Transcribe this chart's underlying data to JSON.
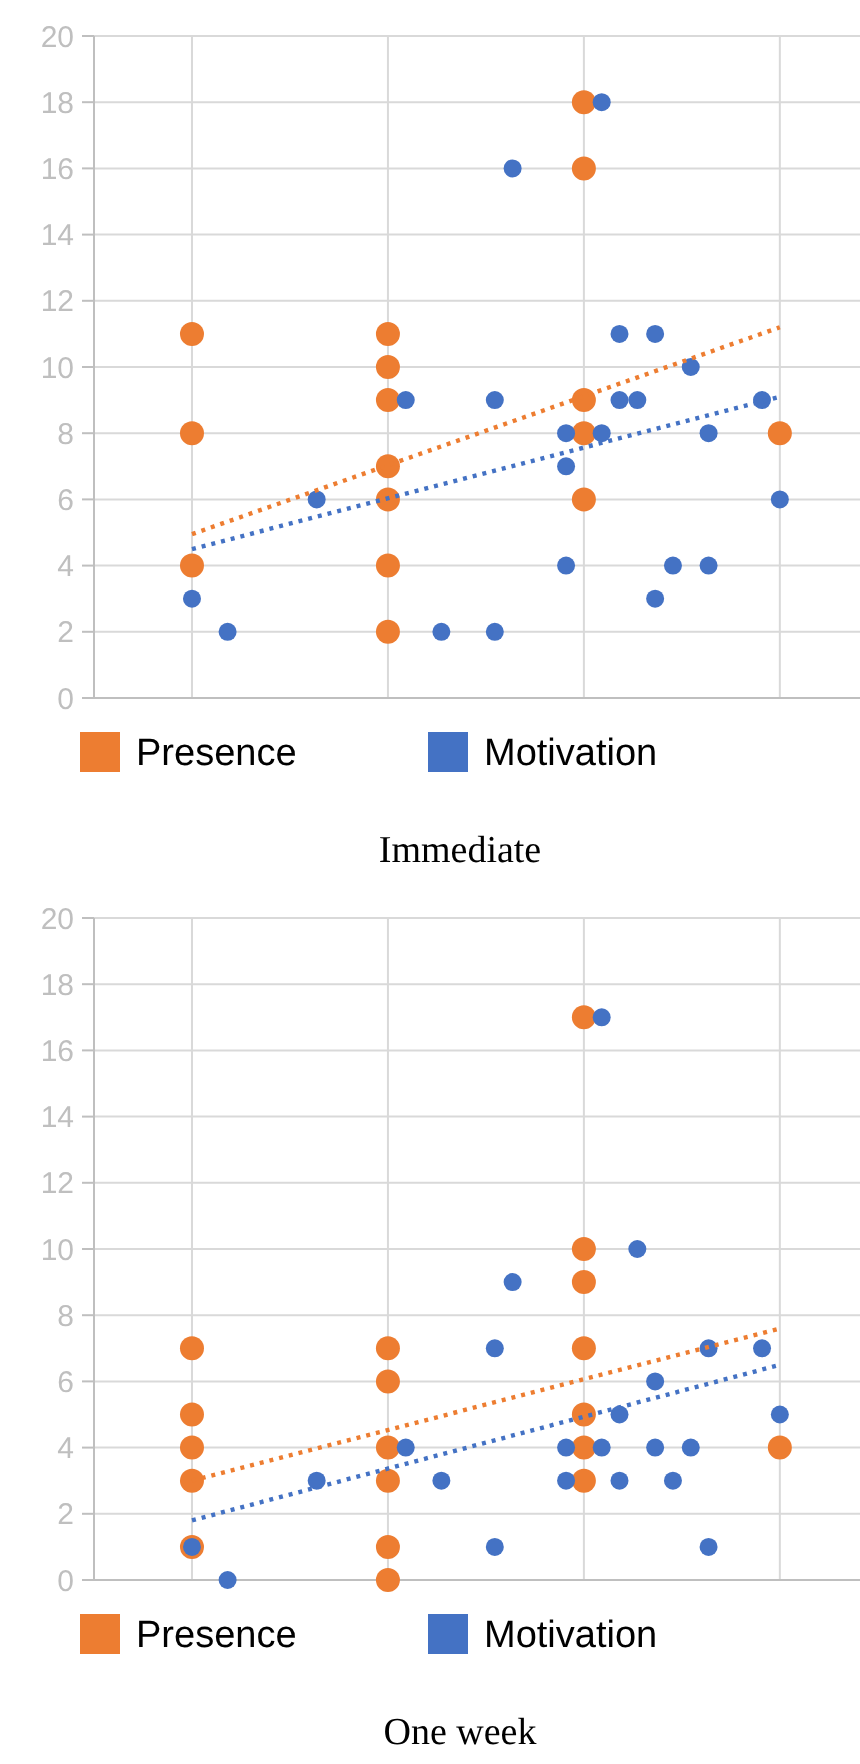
{
  "chart_data": [
    {
      "type": "scatter",
      "title": "Immediate",
      "categories": [
        null,
        null,
        null,
        null,
        null,
        null,
        null,
        null,
        null,
        null,
        null,
        null,
        null,
        null,
        null,
        null,
        null,
        null,
        null,
        null,
        null,
        null,
        null,
        null,
        null,
        null,
        null,
        null,
        null,
        null,
        null,
        null,
        null,
        null,
        null,
        null,
        null,
        null,
        null,
        null,
        null,
        null,
        null
      ],
      "ylim": [
        0,
        20
      ],
      "yticks": [
        0,
        2,
        4,
        6,
        8,
        10,
        12,
        14,
        16,
        18,
        20
      ],
      "grid": true,
      "legend": "bottom",
      "marker": "circle",
      "series": [
        {
          "name": "Presence",
          "color": "#ed7d31",
          "values": [
            null,
            null,
            null,
            null,
            null,
            11,
            null,
            null,
            null,
            null,
            null,
            null,
            null,
            null,
            null,
            null,
            11,
            null,
            null,
            null,
            null,
            null,
            null,
            null,
            null,
            null,
            null,
            18,
            null,
            null,
            null,
            null,
            null,
            null,
            null,
            null,
            null,
            null,
            8,
            null,
            null,
            null,
            null
          ]
        },
        {
          "color": "#ed7d31",
          "values": [
            null,
            null,
            null,
            null,
            null,
            8,
            null,
            null,
            null,
            null,
            null,
            null,
            null,
            null,
            null,
            null,
            10,
            null,
            null,
            null,
            null,
            null,
            null,
            null,
            null,
            null,
            null,
            16,
            null,
            null,
            null,
            null,
            null,
            null,
            null,
            null,
            null,
            null,
            null,
            null,
            null,
            null,
            null
          ]
        },
        {
          "color": "#ed7d31",
          "values": [
            null,
            null,
            null,
            null,
            null,
            4,
            null,
            null,
            null,
            null,
            null,
            null,
            null,
            null,
            null,
            null,
            9,
            null,
            null,
            null,
            null,
            null,
            null,
            null,
            null,
            null,
            null,
            9,
            null,
            null,
            null,
            null,
            null,
            null,
            null,
            null,
            null,
            null,
            null,
            null,
            null,
            null,
            null
          ]
        },
        {
          "color": "#ed7d31",
          "values": [
            null,
            null,
            null,
            null,
            null,
            null,
            null,
            null,
            null,
            null,
            null,
            null,
            null,
            null,
            null,
            null,
            7,
            null,
            null,
            null,
            null,
            null,
            null,
            null,
            null,
            null,
            null,
            8,
            null,
            null,
            null,
            null,
            null,
            null,
            null,
            null,
            null,
            null,
            null,
            null,
            null,
            null,
            null
          ]
        },
        {
          "color": "#ed7d31",
          "values": [
            null,
            null,
            null,
            null,
            null,
            null,
            null,
            null,
            null,
            null,
            null,
            null,
            null,
            null,
            null,
            null,
            6,
            null,
            null,
            null,
            null,
            null,
            null,
            null,
            null,
            null,
            null,
            6,
            null,
            null,
            null,
            null,
            null,
            null,
            null,
            null,
            null,
            null,
            null,
            null,
            null,
            null,
            null
          ]
        },
        {
          "color": "#ed7d31",
          "values": [
            null,
            null,
            null,
            null,
            null,
            null,
            null,
            null,
            null,
            null,
            null,
            null,
            null,
            null,
            null,
            null,
            4,
            null,
            null,
            null,
            null,
            null,
            null,
            null,
            null,
            null,
            null,
            null,
            null,
            null,
            null,
            null,
            null,
            null,
            null,
            null,
            null,
            null,
            null,
            null,
            null,
            null,
            null
          ]
        },
        {
          "color": "#ed7d31",
          "values": [
            null,
            null,
            null,
            null,
            null,
            null,
            null,
            null,
            null,
            null,
            null,
            null,
            null,
            null,
            null,
            null,
            2,
            null,
            null,
            null,
            null,
            null,
            null,
            null,
            null,
            null,
            null,
            null,
            null,
            null,
            null,
            null,
            null,
            null,
            null,
            null,
            null,
            null,
            null,
            null,
            null,
            null,
            null
          ]
        },
        {
          "name": "Motivation",
          "color": "#4472c4",
          "values": [
            null,
            null,
            null,
            null,
            null,
            3,
            null,
            2,
            null,
            null,
            null,
            null,
            6,
            null,
            null,
            null,
            null,
            9,
            null,
            2,
            null,
            null,
            9,
            16,
            null,
            null,
            8,
            null,
            18,
            11,
            9,
            11,
            4,
            10,
            8,
            null,
            null,
            9,
            6,
            null,
            null,
            null,
            null
          ]
        },
        {
          "color": "#4472c4",
          "values": [
            null,
            null,
            null,
            null,
            null,
            null,
            null,
            null,
            null,
            null,
            null,
            null,
            null,
            null,
            null,
            null,
            null,
            null,
            null,
            null,
            null,
            null,
            2,
            null,
            null,
            null,
            7,
            null,
            8,
            9,
            null,
            3,
            null,
            null,
            4,
            null,
            null,
            null,
            null,
            null,
            null,
            null,
            null
          ]
        },
        {
          "color": "#4472c4",
          "values": [
            null,
            null,
            null,
            null,
            null,
            null,
            null,
            null,
            null,
            null,
            null,
            null,
            null,
            null,
            null,
            null,
            null,
            null,
            null,
            null,
            null,
            null,
            null,
            null,
            null,
            null,
            4,
            null,
            null,
            null,
            null,
            null,
            null,
            null,
            null,
            null,
            null,
            null,
            null,
            null,
            null,
            null,
            null
          ]
        },
        {
          "type": "line",
          "color": "#ed7d31",
          "line_style": "dotted",
          "marker": "none",
          "values": [
            null,
            null,
            null,
            null,
            null,
            4.95,
            null,
            null,
            null,
            null,
            null,
            null,
            null,
            null,
            null,
            null,
            null,
            null,
            null,
            null,
            null,
            null,
            null,
            null,
            null,
            null,
            null,
            null,
            null,
            null,
            null,
            null,
            null,
            null,
            null,
            null,
            null,
            null,
            11.2,
            null,
            null,
            null,
            null
          ]
        },
        {
          "type": "line",
          "color": "#4472c4",
          "line_style": "dotted",
          "marker": "none",
          "values": [
            null,
            null,
            null,
            null,
            null,
            4.5,
            null,
            null,
            null,
            null,
            null,
            null,
            null,
            null,
            null,
            null,
            null,
            null,
            null,
            null,
            null,
            null,
            null,
            null,
            null,
            null,
            null,
            null,
            null,
            null,
            null,
            null,
            null,
            null,
            null,
            null,
            null,
            null,
            9.1,
            null,
            null,
            null,
            null
          ]
        }
      ]
    },
    {
      "type": "scatter",
      "title": "One week",
      "categories": [
        null,
        null,
        null,
        null,
        null,
        null,
        null,
        null,
        null,
        null,
        null,
        null,
        null,
        null,
        null,
        null,
        null,
        null,
        null,
        null,
        null,
        null,
        null,
        null,
        null,
        null,
        null,
        null,
        null,
        null,
        null,
        null,
        null,
        null,
        null,
        null,
        null,
        null,
        null,
        null,
        null,
        null,
        null
      ],
      "ylim": [
        0,
        20
      ],
      "yticks": [
        0,
        2,
        4,
        6,
        8,
        10,
        12,
        14,
        16,
        18,
        20
      ],
      "grid": true,
      "legend": "bottom",
      "marker": "circle",
      "series": [
        {
          "name": "Presence",
          "color": "#ed7d31",
          "values": [
            null,
            null,
            null,
            null,
            null,
            7,
            null,
            null,
            null,
            null,
            null,
            null,
            null,
            null,
            null,
            null,
            7,
            null,
            null,
            null,
            null,
            null,
            null,
            null,
            null,
            null,
            null,
            17,
            null,
            null,
            null,
            null,
            null,
            null,
            null,
            null,
            null,
            null,
            4,
            null,
            null,
            null,
            null
          ]
        },
        {
          "color": "#ed7d31",
          "values": [
            null,
            null,
            null,
            null,
            null,
            5,
            null,
            null,
            null,
            null,
            null,
            null,
            null,
            null,
            null,
            null,
            6,
            null,
            null,
            null,
            null,
            null,
            null,
            null,
            null,
            null,
            null,
            10,
            null,
            null,
            null,
            null,
            null,
            null,
            null,
            null,
            null,
            null,
            null,
            null,
            null,
            null,
            null
          ]
        },
        {
          "color": "#ed7d31",
          "values": [
            null,
            null,
            null,
            null,
            null,
            4,
            null,
            null,
            null,
            null,
            null,
            null,
            null,
            null,
            null,
            null,
            4,
            null,
            null,
            null,
            null,
            null,
            null,
            null,
            null,
            null,
            null,
            9,
            null,
            null,
            null,
            null,
            null,
            null,
            null,
            null,
            null,
            null,
            null,
            null,
            null,
            null,
            null
          ]
        },
        {
          "color": "#ed7d31",
          "values": [
            null,
            null,
            null,
            null,
            null,
            3,
            null,
            null,
            null,
            null,
            null,
            null,
            null,
            null,
            null,
            null,
            3,
            null,
            null,
            null,
            null,
            null,
            null,
            null,
            null,
            null,
            null,
            7,
            null,
            null,
            null,
            null,
            null,
            null,
            null,
            null,
            null,
            null,
            null,
            null,
            null,
            null,
            null
          ]
        },
        {
          "color": "#ed7d31",
          "values": [
            null,
            null,
            null,
            null,
            null,
            1,
            null,
            null,
            null,
            null,
            null,
            null,
            null,
            null,
            null,
            null,
            1,
            null,
            null,
            null,
            null,
            null,
            null,
            null,
            null,
            null,
            null,
            5,
            null,
            null,
            null,
            null,
            null,
            null,
            null,
            null,
            null,
            null,
            null,
            null,
            null,
            null,
            null
          ]
        },
        {
          "color": "#ed7d31",
          "values": [
            null,
            null,
            null,
            null,
            null,
            null,
            null,
            null,
            null,
            null,
            null,
            null,
            null,
            null,
            null,
            null,
            0,
            null,
            null,
            null,
            null,
            null,
            null,
            null,
            null,
            null,
            null,
            4,
            null,
            null,
            null,
            null,
            null,
            null,
            null,
            null,
            null,
            null,
            null,
            null,
            null,
            null,
            null
          ]
        },
        {
          "color": "#ed7d31",
          "values": [
            null,
            null,
            null,
            null,
            null,
            null,
            null,
            null,
            null,
            null,
            null,
            null,
            null,
            null,
            null,
            null,
            null,
            null,
            null,
            null,
            null,
            null,
            null,
            null,
            null,
            null,
            null,
            3,
            null,
            null,
            null,
            null,
            null,
            null,
            null,
            null,
            null,
            null,
            null,
            null,
            null,
            null,
            null
          ]
        },
        {
          "name": "Motivation",
          "color": "#4472c4",
          "values": [
            null,
            null,
            null,
            null,
            null,
            1,
            null,
            0,
            null,
            null,
            null,
            null,
            3,
            null,
            null,
            null,
            null,
            4,
            null,
            3,
            null,
            null,
            7,
            9,
            null,
            null,
            4,
            null,
            17,
            5,
            10,
            6,
            3,
            4,
            7,
            null,
            null,
            7,
            5,
            null,
            null,
            null,
            null
          ]
        },
        {
          "color": "#4472c4",
          "values": [
            null,
            null,
            null,
            null,
            null,
            null,
            null,
            null,
            null,
            null,
            null,
            null,
            null,
            null,
            null,
            null,
            null,
            null,
            null,
            null,
            null,
            null,
            1,
            null,
            null,
            null,
            3,
            null,
            4,
            3,
            null,
            4,
            null,
            null,
            1,
            null,
            null,
            null,
            null,
            null,
            null,
            null,
            null
          ]
        },
        {
          "type": "line",
          "color": "#ed7d31",
          "line_style": "dotted",
          "marker": "none",
          "values": [
            null,
            null,
            null,
            null,
            null,
            3,
            null,
            null,
            null,
            null,
            null,
            null,
            null,
            null,
            null,
            null,
            null,
            null,
            null,
            null,
            null,
            null,
            null,
            null,
            null,
            null,
            null,
            null,
            null,
            null,
            null,
            null,
            null,
            null,
            null,
            null,
            null,
            null,
            7.6,
            null,
            null,
            null,
            null
          ]
        },
        {
          "type": "line",
          "color": "#4472c4",
          "line_style": "dotted",
          "marker": "none",
          "values": [
            null,
            null,
            null,
            null,
            null,
            1.8,
            null,
            null,
            null,
            null,
            null,
            null,
            null,
            null,
            null,
            null,
            null,
            null,
            null,
            null,
            null,
            null,
            null,
            null,
            null,
            null,
            null,
            null,
            null,
            null,
            null,
            null,
            null,
            null,
            null,
            null,
            null,
            null,
            6.5,
            null,
            null,
            null,
            null
          ]
        }
      ]
    }
  ]
}
